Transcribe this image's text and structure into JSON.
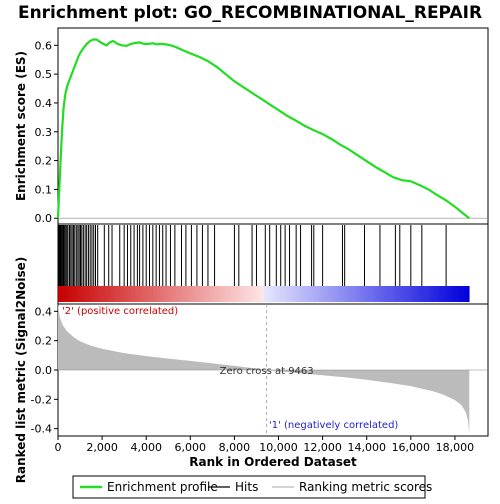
{
  "chart_data": {
    "title": "Enrichment plot: GO_RECOMBINATIONAL_REPAIR",
    "top_panel": {
      "type": "line",
      "ylabel": "Enrichment score (ES)",
      "ylim": [
        -0.02,
        0.66
      ],
      "yticks": [
        0.0,
        0.1,
        0.2,
        0.3,
        0.4,
        0.5,
        0.6
      ],
      "ytick_labels": [
        "0.0",
        "0.1",
        "0.2",
        "0.3",
        "0.4",
        "0.5",
        "0.6"
      ],
      "series_color": "#22dd22",
      "points": [
        [
          0,
          0.0
        ],
        [
          60,
          0.1
        ],
        [
          120,
          0.2
        ],
        [
          180,
          0.3
        ],
        [
          250,
          0.38
        ],
        [
          330,
          0.43
        ],
        [
          420,
          0.46
        ],
        [
          520,
          0.48
        ],
        [
          620,
          0.5
        ],
        [
          720,
          0.52
        ],
        [
          820,
          0.54
        ],
        [
          920,
          0.56
        ],
        [
          1020,
          0.575
        ],
        [
          1150,
          0.59
        ],
        [
          1300,
          0.605
        ],
        [
          1450,
          0.615
        ],
        [
          1600,
          0.62
        ],
        [
          1750,
          0.62
        ],
        [
          1900,
          0.612
        ],
        [
          2050,
          0.605
        ],
        [
          2200,
          0.6
        ],
        [
          2350,
          0.61
        ],
        [
          2500,
          0.615
        ],
        [
          2700,
          0.605
        ],
        [
          2900,
          0.6
        ],
        [
          3100,
          0.598
        ],
        [
          3300,
          0.605
        ],
        [
          3500,
          0.608
        ],
        [
          3700,
          0.61
        ],
        [
          3900,
          0.605
        ],
        [
          4100,
          0.605
        ],
        [
          4300,
          0.607
        ],
        [
          4500,
          0.603
        ],
        [
          4700,
          0.605
        ],
        [
          4900,
          0.603
        ],
        [
          5100,
          0.6
        ],
        [
          5300,
          0.595
        ],
        [
          5600,
          0.585
        ],
        [
          6000,
          0.572
        ],
        [
          6400,
          0.56
        ],
        [
          6800,
          0.545
        ],
        [
          7200,
          0.525
        ],
        [
          7600,
          0.5
        ],
        [
          8000,
          0.475
        ],
        [
          8400,
          0.455
        ],
        [
          8800,
          0.435
        ],
        [
          9200,
          0.415
        ],
        [
          9600,
          0.395
        ],
        [
          10000,
          0.375
        ],
        [
          10400,
          0.355
        ],
        [
          10800,
          0.338
        ],
        [
          11200,
          0.32
        ],
        [
          11600,
          0.305
        ],
        [
          12000,
          0.292
        ],
        [
          12400,
          0.275
        ],
        [
          12800,
          0.255
        ],
        [
          13200,
          0.238
        ],
        [
          13600,
          0.218
        ],
        [
          14000,
          0.198
        ],
        [
          14400,
          0.178
        ],
        [
          14800,
          0.16
        ],
        [
          15200,
          0.142
        ],
        [
          15600,
          0.132
        ],
        [
          16000,
          0.128
        ],
        [
          16400,
          0.115
        ],
        [
          16800,
          0.1
        ],
        [
          17200,
          0.08
        ],
        [
          17600,
          0.062
        ],
        [
          18000,
          0.04
        ],
        [
          18400,
          0.015
        ],
        [
          18650,
          0.0
        ]
      ]
    },
    "hits_panel": {
      "hit_ranks": [
        20,
        55,
        90,
        130,
        170,
        210,
        250,
        300,
        350,
        400,
        450,
        520,
        580,
        640,
        700,
        760,
        830,
        900,
        960,
        1020,
        1080,
        1150,
        1230,
        1300,
        1380,
        1460,
        1540,
        1620,
        1700,
        1800,
        2100,
        2300,
        2450,
        2800,
        3000,
        3150,
        3300,
        3450,
        3600,
        3700,
        3850,
        4000,
        4150,
        4300,
        4450,
        4600,
        4750,
        4900,
        5100,
        5300,
        5600,
        5800,
        6050,
        6300,
        6550,
        6800,
        7100,
        8000,
        8200,
        8800,
        9000,
        9400,
        9600,
        9900,
        10100,
        10300,
        10500,
        10800,
        11000,
        11500,
        11600,
        12000,
        12900,
        13000,
        13900,
        14600,
        15300,
        15500,
        16000,
        16500,
        17600
      ]
    },
    "bottom_panel": {
      "type": "area",
      "ylabel": "Ranked list metric (Signal2Noise)",
      "ylim": [
        -0.45,
        0.45
      ],
      "yticks": [
        -0.4,
        -0.2,
        0.0,
        0.2,
        0.4
      ],
      "ytick_labels": [
        "-0.4",
        "-0.2",
        "0.0",
        "0.2",
        "0.4"
      ],
      "fill_color": "#bbbbbb",
      "metric_points": [
        [
          0,
          0.45
        ],
        [
          80,
          0.36
        ],
        [
          200,
          0.31
        ],
        [
          400,
          0.265
        ],
        [
          700,
          0.225
        ],
        [
          1000,
          0.195
        ],
        [
          1500,
          0.165
        ],
        [
          2000,
          0.145
        ],
        [
          3000,
          0.115
        ],
        [
          4000,
          0.095
        ],
        [
          5000,
          0.078
        ],
        [
          6000,
          0.062
        ],
        [
          7000,
          0.045
        ],
        [
          8000,
          0.028
        ],
        [
          9000,
          0.01
        ],
        [
          9463,
          0.0
        ],
        [
          10000,
          -0.008
        ],
        [
          11000,
          -0.022
        ],
        [
          12000,
          -0.036
        ],
        [
          13000,
          -0.05
        ],
        [
          14000,
          -0.067
        ],
        [
          15000,
          -0.087
        ],
        [
          16000,
          -0.11
        ],
        [
          17000,
          -0.145
        ],
        [
          17500,
          -0.17
        ],
        [
          18000,
          -0.205
        ],
        [
          18300,
          -0.24
        ],
        [
          18500,
          -0.29
        ],
        [
          18600,
          -0.35
        ],
        [
          18650,
          -0.44
        ]
      ],
      "zero_cross_rank": 9463,
      "zero_cross_label": "Zero cross at 9463",
      "positive_label": "'2' (positive correlated)",
      "negative_label": "'1' (negatively correlated)"
    },
    "x_axis": {
      "xlabel": "Rank in Ordered Dataset",
      "xlim": [
        0,
        19500
      ],
      "xticks": [
        0,
        2000,
        4000,
        6000,
        8000,
        10000,
        12000,
        14000,
        16000,
        18000
      ],
      "xtick_labels": [
        "0",
        "2,000",
        "4,000",
        "6,000",
        "8,000",
        "10,000",
        "12,000",
        "14,000",
        "16,000",
        "18,000"
      ],
      "n_genes": 18650
    },
    "legend": {
      "placement": "bottom",
      "entries": [
        {
          "label": "Enrichment profile",
          "color": "#22dd22"
        },
        {
          "label": "Hits",
          "color": "#000000"
        },
        {
          "label": "Ranking metric scores",
          "color": "#bbbbbb"
        }
      ]
    }
  }
}
